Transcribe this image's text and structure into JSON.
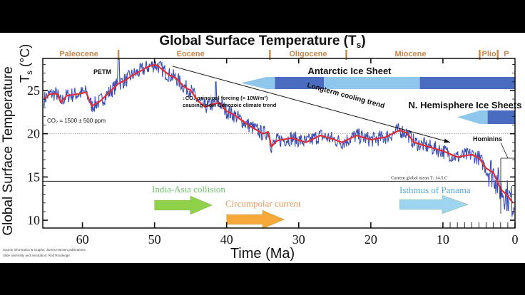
{
  "chart_data": {
    "type": "line",
    "title": "Global Surface Temperature (T",
    "title_sub": "s",
    "title_end": ")",
    "xlabel": "Time (Ma)",
    "ylabel": "Global Surface Temperature",
    "ylabel2": "T",
    "ylabel2_sub": "s",
    "ylabel2_end": " (°C)",
    "xlim": [
      65.5,
      0
    ],
    "ylim": [
      9.1,
      28.7
    ],
    "xticks": [
      60,
      50,
      40,
      30,
      20,
      10,
      0
    ],
    "xtick_labels": [
      "60",
      "50",
      "40",
      "30",
      "20",
      "10",
      "0"
    ],
    "yticks": [
      25,
      20,
      15,
      10
    ],
    "ytick_labels": [
      "25",
      "20",
      "15",
      "10"
    ],
    "grid": false,
    "series": [
      {
        "name": "smoothed temperature",
        "color": "#e0303a",
        "x": [
          65.3,
          64.5,
          63.5,
          63.0,
          62.2,
          60.5,
          59.5,
          58.7,
          57.5,
          56,
          55,
          54,
          53,
          52,
          51,
          50,
          49.5,
          48,
          47,
          46,
          45,
          44,
          43,
          42,
          41,
          40,
          39,
          38,
          37,
          36,
          35,
          34.2,
          33.8,
          33,
          31,
          29,
          27,
          25,
          24,
          22,
          20,
          18,
          16,
          15,
          14,
          12,
          10,
          8,
          6,
          5,
          4,
          3,
          2,
          1,
          0.3
        ],
        "y": [
          24.0,
          24.6,
          24.6,
          23.6,
          24.4,
          24.6,
          24.8,
          23.2,
          23.8,
          25.0,
          25.8,
          26.2,
          26.8,
          27.2,
          27.7,
          28.0,
          27.8,
          26.8,
          26.4,
          25.5,
          25.0,
          23.8,
          23.1,
          23.4,
          23.6,
          22.6,
          22.2,
          21.6,
          21.0,
          20.5,
          20.0,
          20.2,
          18.5,
          19.2,
          19.5,
          19.0,
          19.8,
          19.3,
          19.0,
          19.8,
          19.3,
          19.6,
          20.4,
          20.1,
          19.0,
          18.5,
          18.0,
          17.3,
          17.6,
          17.2,
          16.0,
          15.5,
          13.6,
          12.8,
          12.0
        ]
      },
      {
        "name": "raw temperature record",
        "color": "#3a4fb0",
        "noise_amplitude_c": 0.9
      }
    ],
    "epochs": [
      {
        "name": "Paleocene",
        "center": 60.5
      },
      {
        "name": "Eocene",
        "center": 45
      },
      {
        "name": "Oligocene",
        "center": 28.7
      },
      {
        "name": "Miocene",
        "center": 14.5
      },
      {
        "name": "Plio",
        "center": 3.6
      },
      {
        "name": "P",
        "center": 1.2
      }
    ],
    "epoch_boundaries": [
      55,
      34,
      23.4,
      4.9,
      2.4
    ],
    "epoch_color": "#c8864a",
    "reference_lines": [
      {
        "y": 20,
        "style": "dotted"
      },
      {
        "y": 14.5,
        "style": "solid",
        "label": "Current global mean T: 14.5 C"
      }
    ],
    "annotations": {
      "petm": "PETM",
      "co2": "CO₂ = 1500 ± 500 ppm",
      "forcing_line1": "↓CO₂ principal forcing (> 10W/m²)",
      "forcing_line2": "causing slow Cenozoic climate trend",
      "trend": "Longterm cooling trend",
      "hominins": "Hominins",
      "trend_from": [
        47.5,
        27.8
      ],
      "trend_to": [
        9,
        19.0
      ]
    },
    "ice_sheets": [
      {
        "name": "Antarctic Ice Sheet",
        "segments": [
          {
            "from": 38,
            "to": 33.3,
            "kind": "partial"
          },
          {
            "from": 33.3,
            "to": 26.5,
            "kind": "full"
          },
          {
            "from": 26.5,
            "to": 13.2,
            "kind": "partial"
          },
          {
            "from": 13.2,
            "to": 0,
            "kind": "full"
          }
        ]
      },
      {
        "name": "N. Hemisphere Ice Sheets",
        "segments": [
          {
            "from": 8,
            "to": 3.8,
            "kind": "partial"
          },
          {
            "from": 3.8,
            "to": 0,
            "kind": "full"
          }
        ]
      }
    ],
    "ice_colors": {
      "partial": "#8ec6ec",
      "full": "#4a6cc0"
    },
    "events": [
      {
        "name": "India-Asia collision",
        "from": 50,
        "to": 42,
        "color": "#8fd24a",
        "text_color": "#6ec06a"
      },
      {
        "name": "Circumpolar current",
        "from": 40,
        "to": 32,
        "color": "#f6a93a",
        "text_color": "#e89a5e"
      },
      {
        "name": "Isthmus of Panama",
        "from": 16,
        "to": 6.5,
        "color": "#9dd4f0",
        "text_color": "#5aa8da"
      }
    ]
  },
  "footer": {
    "credit_line1": "Source Information & Graphs: James Hansen publications",
    "credit_line2": "Slide assembly and annotation: Rod Routledge"
  }
}
